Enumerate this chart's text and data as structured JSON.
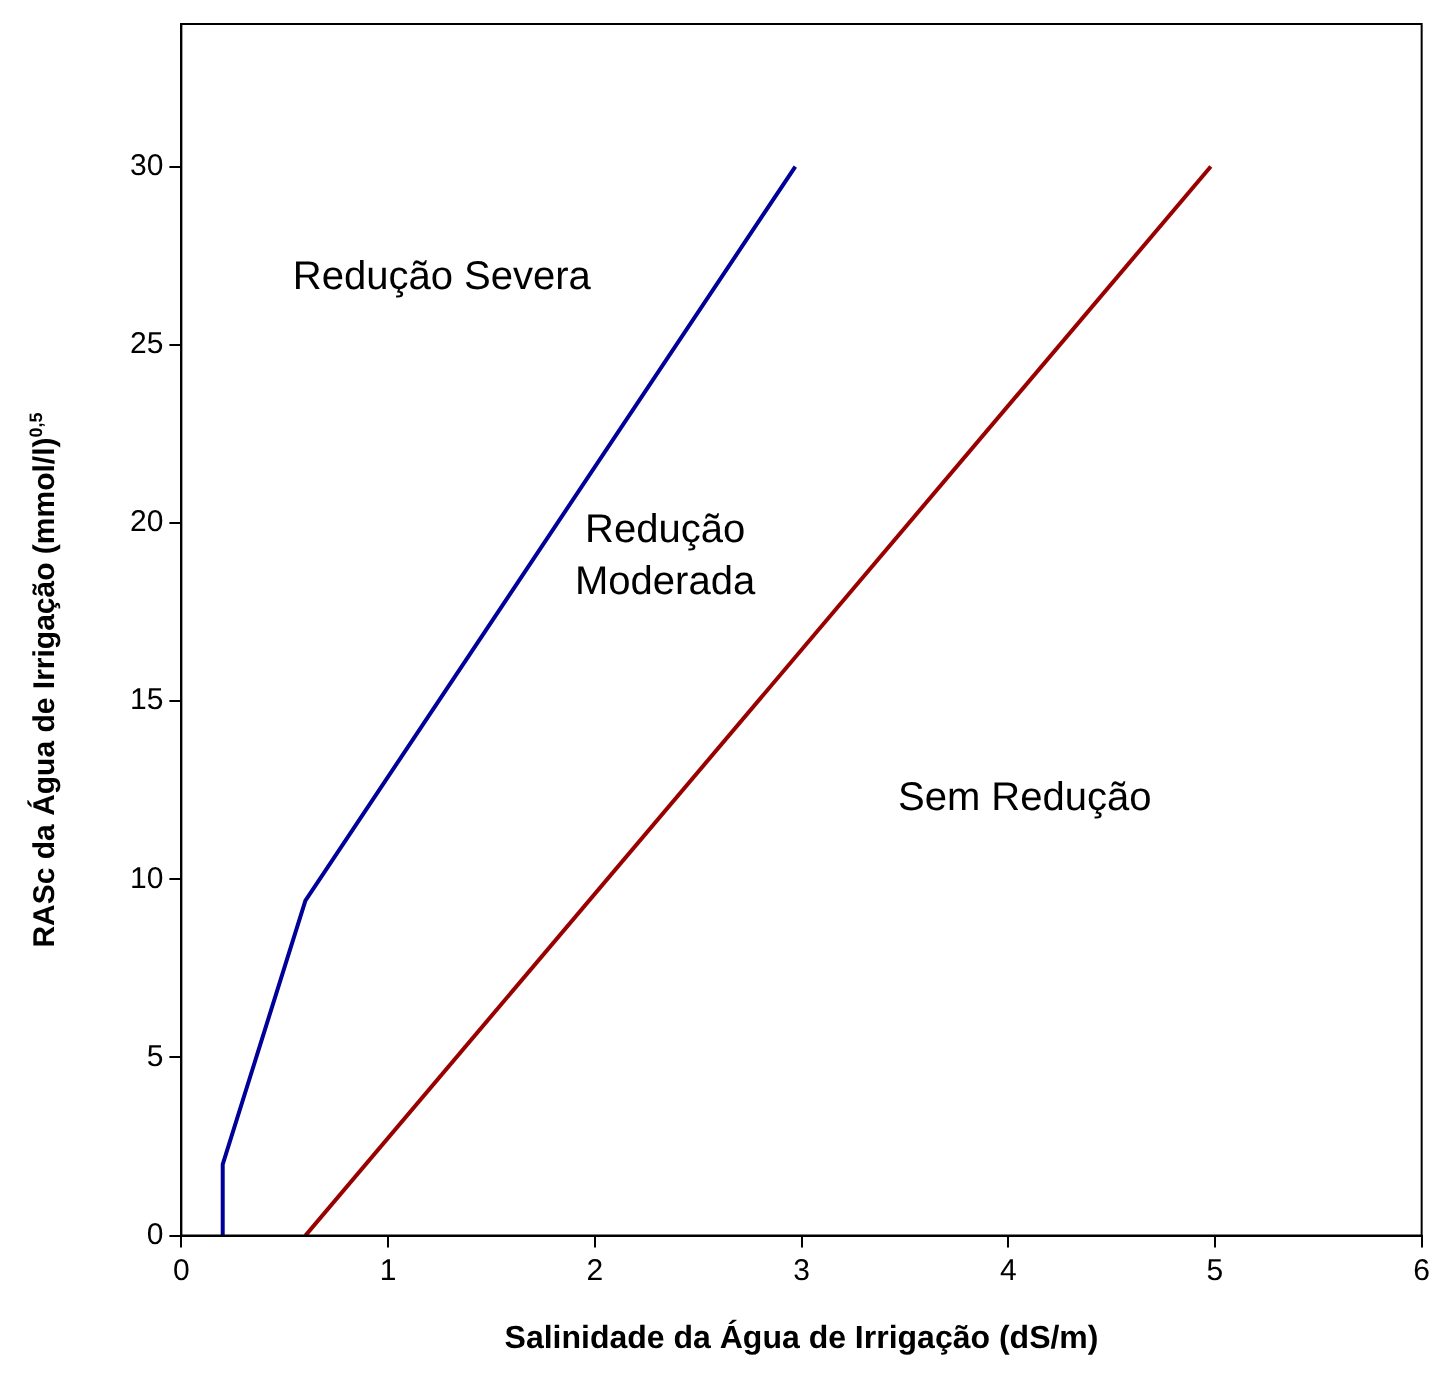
{
  "chart_data": {
    "type": "line",
    "xlabel": "Salinidade da Água de Irrigação (dS/m)",
    "ylabel": "RASc da Água de Irrigação (mmol/l)$^{0,5}$",
    "xlim": [
      0,
      6
    ],
    "xticks": [
      0,
      1,
      2,
      3,
      4,
      5,
      6
    ],
    "ylim": [
      0,
      34
    ],
    "yticks": [
      0,
      5,
      10,
      15,
      20,
      25,
      30
    ],
    "grid": false,
    "legend": false,
    "marker": "none",
    "line_style": "solid",
    "series": [
      {
        "color": "#000099",
        "x": [
          0.2,
          0.2,
          0.6,
          2.97
        ],
        "values": [
          0,
          2,
          9.4,
          30
        ]
      },
      {
        "color": "#990000",
        "x": [
          0.6,
          4.98
        ],
        "values": [
          0,
          30
        ]
      }
    ],
    "annotations": [
      "Redução Severa",
      "Redução\nModerada",
      "Sem Redução"
    ]
  }
}
